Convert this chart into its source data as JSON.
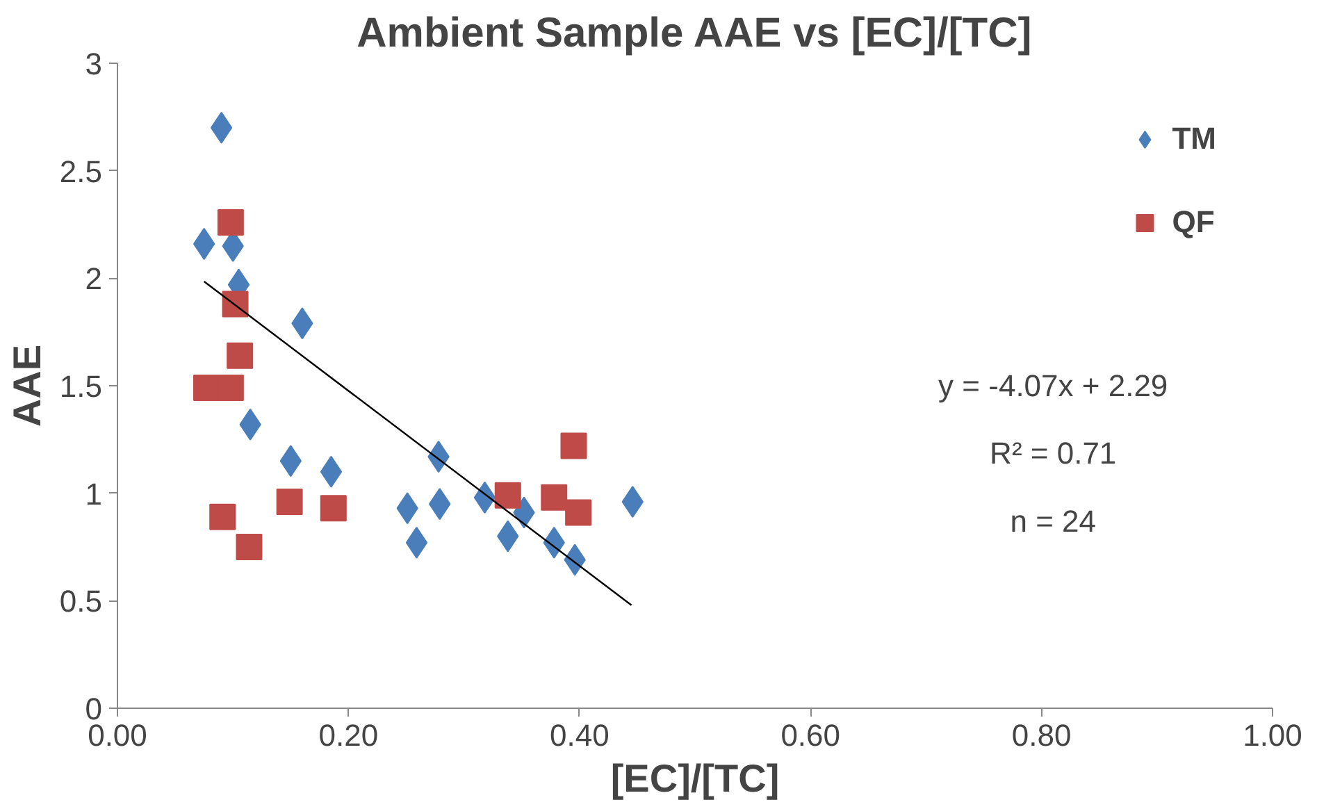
{
  "chart_data": {
    "type": "scatter",
    "title": "Ambient Sample AAE vs [EC]/[TC]",
    "xlabel": "[EC]/[TC]",
    "ylabel": "AAE",
    "xlim": [
      0,
      1
    ],
    "xticks": [
      {
        "value": 0,
        "label": "0.00"
      },
      {
        "value": 0.2,
        "label": "0.20"
      },
      {
        "value": 0.4,
        "label": "0.40"
      },
      {
        "value": 0.6,
        "label": "0.60"
      },
      {
        "value": 0.8,
        "label": "0.80"
      },
      {
        "value": 1,
        "label": "1.00"
      }
    ],
    "ylim": [
      0,
      3
    ],
    "yticks": [
      0,
      0.5,
      1,
      1.5,
      2,
      2.5,
      3
    ],
    "grid": false,
    "legend": "top right",
    "annotations": [
      "y = -4.07x + 2.29",
      "R² = 0.71",
      "n = 24"
    ],
    "series": [
      {
        "name": "TM",
        "color": "#4a7ebb",
        "marker": "diamond",
        "x": [
          0.09,
          0.075,
          0.1,
          0.105,
          0.16,
          0.115,
          0.15,
          0.185,
          0.278,
          0.251,
          0.279,
          0.259,
          0.318,
          0.338,
          0.352,
          0.378,
          0.396,
          0.446
        ],
        "values": [
          2.7,
          2.16,
          2.15,
          1.97,
          1.79,
          1.32,
          1.15,
          1.1,
          1.17,
          0.93,
          0.95,
          0.77,
          0.98,
          0.8,
          0.91,
          0.77,
          0.69,
          0.96
        ]
      },
      {
        "name": "QF",
        "color": "#be4b48",
        "marker": "square",
        "x": [
          0.098,
          0.102,
          0.106,
          0.077,
          0.098,
          0.091,
          0.114,
          0.149,
          0.187,
          0.338,
          0.378,
          0.395,
          0.399
        ],
        "values": [
          2.26,
          1.88,
          1.64,
          1.49,
          1.49,
          0.89,
          0.75,
          0.96,
          0.93,
          0.99,
          0.98,
          1.22,
          0.91
        ]
      },
      {
        "type": "line",
        "color": "#000000",
        "x": [
          0.075,
          0.445
        ],
        "values": [
          1.985,
          0.479
        ]
      }
    ]
  }
}
